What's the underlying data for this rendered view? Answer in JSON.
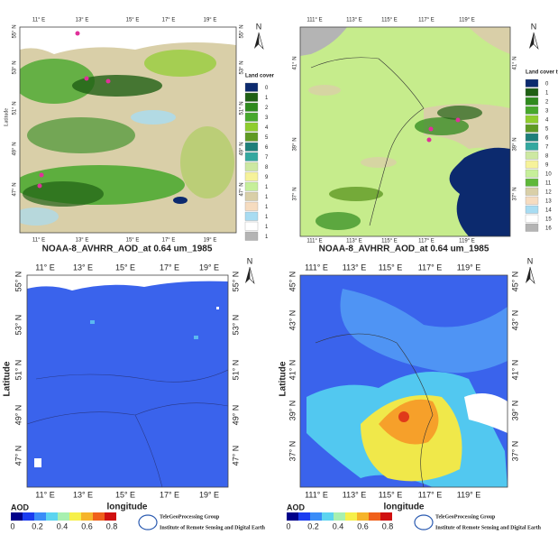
{
  "panels": {
    "land_cover_europe": {
      "y_label": "Latitude",
      "x_ticks": [
        "11° E",
        "13° E",
        "15° E",
        "17° E",
        "19° E"
      ],
      "y_ticks": [
        "55° N",
        "53° N",
        "51° N",
        "49° N",
        "47° N"
      ],
      "north": "N",
      "legend_title": "Land cover",
      "legend": [
        {
          "label": "0",
          "color": "#0c2a6e"
        },
        {
          "label": "1",
          "color": "#1f5f14"
        },
        {
          "label": "2",
          "color": "#2f8a1e"
        },
        {
          "label": "3",
          "color": "#47a82c"
        },
        {
          "label": "4",
          "color": "#8fcd2e"
        },
        {
          "label": "5",
          "color": "#5f9a24"
        },
        {
          "label": "6",
          "color": "#1e7f7a"
        },
        {
          "label": "7",
          "color": "#34a8a0"
        },
        {
          "label": "8",
          "color": "#cde8a2"
        },
        {
          "label": "9",
          "color": "#f6f29a"
        },
        {
          "label": "1",
          "color": "#c6ef9a"
        },
        {
          "label": "1",
          "color": "#d9cfa8"
        },
        {
          "label": "1",
          "color": "#f6dcc0"
        },
        {
          "label": "1",
          "color": "#a8dcf2"
        },
        {
          "label": "1",
          "color": "#ffffff"
        },
        {
          "label": "1",
          "color": "#b4b4b4"
        }
      ]
    },
    "land_cover_china": {
      "x_ticks": [
        "111° E",
        "113° E",
        "115° E",
        "117° E",
        "119° E"
      ],
      "y_ticks": [
        "41° N",
        "39° N",
        "37° N"
      ],
      "north": "N",
      "legend_title": "Land cover type",
      "legend": [
        {
          "label": "0",
          "color": "#0c2a6e"
        },
        {
          "label": "1",
          "color": "#1f5f14"
        },
        {
          "label": "2",
          "color": "#2f8a1e"
        },
        {
          "label": "3",
          "color": "#47a82c"
        },
        {
          "label": "4",
          "color": "#8fcd2e"
        },
        {
          "label": "5",
          "color": "#5f9a24"
        },
        {
          "label": "6",
          "color": "#1e7f7a"
        },
        {
          "label": "7",
          "color": "#34a8a0"
        },
        {
          "label": "8",
          "color": "#cde8a2"
        },
        {
          "label": "9",
          "color": "#f6f29a"
        },
        {
          "label": "10",
          "color": "#c6ef9a"
        },
        {
          "label": "11",
          "color": "#5fb83a"
        },
        {
          "label": "12",
          "color": "#d9cfa8"
        },
        {
          "label": "13",
          "color": "#f6dcc0"
        },
        {
          "label": "14",
          "color": "#a8dcf2"
        },
        {
          "label": "15",
          "color": "#ffffff"
        },
        {
          "label": "16",
          "color": "#b4b4b4"
        }
      ]
    },
    "aod_europe": {
      "title": "NOAA-8_AVHRR_AOD_at 0.64 um_1985",
      "x_label": "longitude",
      "y_label": "Latitude",
      "x_ticks": [
        "11° E",
        "13° E",
        "15° E",
        "17° E",
        "19° E"
      ],
      "y_ticks": [
        "55° N",
        "53° N",
        "51° N",
        "49° N",
        "47° N"
      ],
      "north": "N",
      "colorbar_title": "AOD",
      "colorbar_ticks": [
        "0",
        "0.2",
        "0.4",
        "0.6",
        "0.8"
      ],
      "logo_lines": [
        "TeleGeoProcessing Group",
        "Institute of Remote Sensing and Digital Earth"
      ]
    },
    "aod_china": {
      "title": "NOAA-8_AVHRR_AOD_at 0.64 um_1985",
      "x_label": "longitude",
      "y_label": "Latitude",
      "x_ticks": [
        "111° E",
        "113° E",
        "115° E",
        "117° E",
        "119° E"
      ],
      "y_ticks": [
        "45° N",
        "43° N",
        "41° N",
        "39° N",
        "37° N"
      ],
      "north": "N",
      "colorbar_title": "AOD",
      "colorbar_ticks": [
        "0",
        "0.2",
        "0.4",
        "0.6",
        "0.8"
      ],
      "logo_lines": [
        "TeleGeoProcessing Group",
        "Institute of Remote Sensing and Digital Earth"
      ]
    }
  }
}
